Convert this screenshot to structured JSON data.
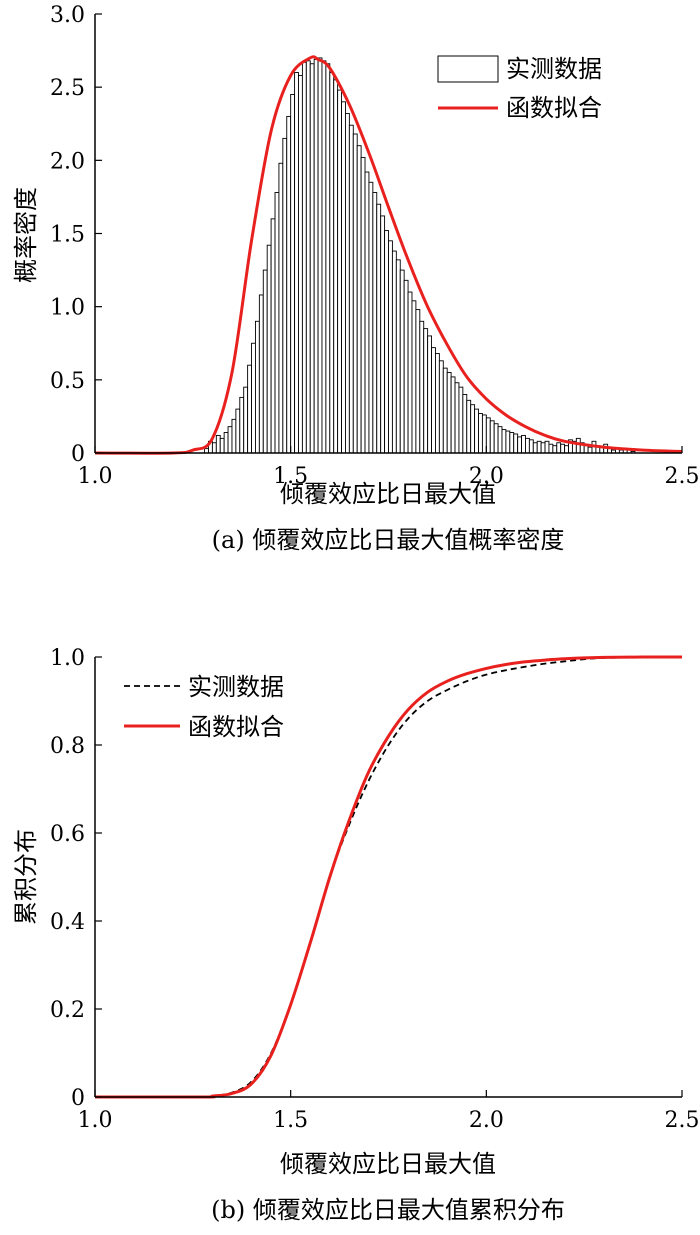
{
  "chart_data": [
    {
      "type": "bar",
      "panel": "a",
      "caption": "(a) 倾覆效应比日最大值概率密度",
      "xlabel": "倾覆效应比日最大值",
      "ylabel": "概率密度",
      "xlim": [
        1.0,
        2.5
      ],
      "ylim": [
        0,
        3.0
      ],
      "xticks": [
        "1.0",
        "1.5",
        "2.0",
        "2.5"
      ],
      "yticks": [
        "0",
        "0.5",
        "1.0",
        "1.5",
        "2.0",
        "2.5",
        "3.0"
      ],
      "grid": false,
      "legend_position": "top-right",
      "legend": [
        {
          "label": "实测数据",
          "kind": "bar"
        },
        {
          "label": "函数拟合",
          "kind": "line",
          "color": "#e8211f"
        }
      ],
      "bin_start": 1.0,
      "bin_width": 0.01,
      "histogram": [
        0,
        0,
        0,
        0,
        0,
        0,
        0,
        0,
        0,
        0,
        0,
        0,
        0,
        0,
        0,
        0,
        0,
        0,
        0,
        0,
        0,
        0,
        0,
        0,
        0,
        0,
        0,
        0,
        0.03,
        0.08,
        0.07,
        0.12,
        0.1,
        0.14,
        0.18,
        0.23,
        0.3,
        0.38,
        0.45,
        0.6,
        0.75,
        0.9,
        1.08,
        1.25,
        1.42,
        1.6,
        1.78,
        1.98,
        2.15,
        2.3,
        2.45,
        2.6,
        2.58,
        2.67,
        2.68,
        2.66,
        2.69,
        2.7,
        2.68,
        2.66,
        2.6,
        2.55,
        2.48,
        2.4,
        2.32,
        2.24,
        2.18,
        2.1,
        2.02,
        1.92,
        1.85,
        1.78,
        1.7,
        1.62,
        1.52,
        1.45,
        1.38,
        1.32,
        1.25,
        1.18,
        1.1,
        1.04,
        0.98,
        0.9,
        0.85,
        0.8,
        0.72,
        0.68,
        0.63,
        0.58,
        0.55,
        0.52,
        0.48,
        0.45,
        0.4,
        0.36,
        0.33,
        0.3,
        0.27,
        0.26,
        0.24,
        0.22,
        0.2,
        0.18,
        0.16,
        0.15,
        0.14,
        0.13,
        0.11,
        0.12,
        0.1,
        0.09,
        0.07,
        0.08,
        0.07,
        0.08,
        0.06,
        0.05,
        0.07,
        0.06,
        0.05,
        0.09,
        0.08,
        0.1,
        0.07,
        0.06,
        0.04,
        0.08,
        0.05,
        0.04,
        0.06,
        0.03,
        0.02,
        0.03,
        0.02,
        0.03,
        0.02,
        0.01,
        0,
        0,
        0,
        0,
        0,
        0,
        0,
        0,
        0,
        0,
        0,
        0,
        0,
        0
      ],
      "fit": {
        "name": "函数拟合",
        "color": "#e8211f",
        "x": [
          1.0,
          1.2,
          1.25,
          1.3,
          1.35,
          1.4,
          1.45,
          1.5,
          1.55,
          1.57,
          1.6,
          1.65,
          1.7,
          1.75,
          1.8,
          1.85,
          1.9,
          1.95,
          2.0,
          2.05,
          2.1,
          2.15,
          2.2,
          2.3,
          2.4,
          2.5
        ],
        "y": [
          0,
          0,
          0.02,
          0.1,
          0.55,
          1.45,
          2.2,
          2.58,
          2.7,
          2.69,
          2.63,
          2.38,
          2.05,
          1.68,
          1.32,
          1.0,
          0.74,
          0.52,
          0.37,
          0.26,
          0.18,
          0.12,
          0.08,
          0.04,
          0.02,
          0.01
        ]
      }
    },
    {
      "type": "line",
      "panel": "b",
      "caption": "(b) 倾覆效应比日最大值累积分布",
      "xlabel": "倾覆效应比日最大值",
      "ylabel": "累积分布",
      "xlim": [
        1.0,
        2.5
      ],
      "ylim": [
        0,
        1.0
      ],
      "xticks": [
        "1.0",
        "1.5",
        "2.0",
        "2.5"
      ],
      "yticks": [
        "0",
        "0.2",
        "0.4",
        "0.6",
        "0.8",
        "1.0"
      ],
      "grid": false,
      "legend_position": "top-left",
      "series": [
        {
          "name": "实测数据",
          "style": "dashed",
          "color": "#000000",
          "x": [
            1.0,
            1.28,
            1.3,
            1.35,
            1.4,
            1.45,
            1.5,
            1.55,
            1.6,
            1.65,
            1.7,
            1.75,
            1.8,
            1.85,
            1.9,
            1.95,
            2.0,
            2.05,
            2.1,
            2.15,
            2.2,
            2.25,
            2.3,
            2.4,
            2.5
          ],
          "y": [
            0,
            0,
            0.002,
            0.01,
            0.035,
            0.1,
            0.21,
            0.35,
            0.5,
            0.62,
            0.72,
            0.8,
            0.86,
            0.9,
            0.925,
            0.945,
            0.96,
            0.97,
            0.978,
            0.985,
            0.99,
            0.995,
            0.998,
            0.999,
            1.0
          ]
        },
        {
          "name": "函数拟合",
          "style": "solid",
          "color": "#e8211f",
          "x": [
            1.0,
            1.28,
            1.3,
            1.35,
            1.4,
            1.45,
            1.5,
            1.55,
            1.6,
            1.65,
            1.7,
            1.75,
            1.8,
            1.85,
            1.9,
            1.95,
            2.0,
            2.05,
            2.1,
            2.15,
            2.2,
            2.25,
            2.3,
            2.4,
            2.5
          ],
          "y": [
            0,
            0,
            0.002,
            0.008,
            0.03,
            0.095,
            0.21,
            0.35,
            0.5,
            0.63,
            0.74,
            0.82,
            0.88,
            0.92,
            0.945,
            0.962,
            0.974,
            0.983,
            0.989,
            0.993,
            0.996,
            0.998,
            0.999,
            1.0,
            1.0
          ]
        }
      ]
    }
  ]
}
